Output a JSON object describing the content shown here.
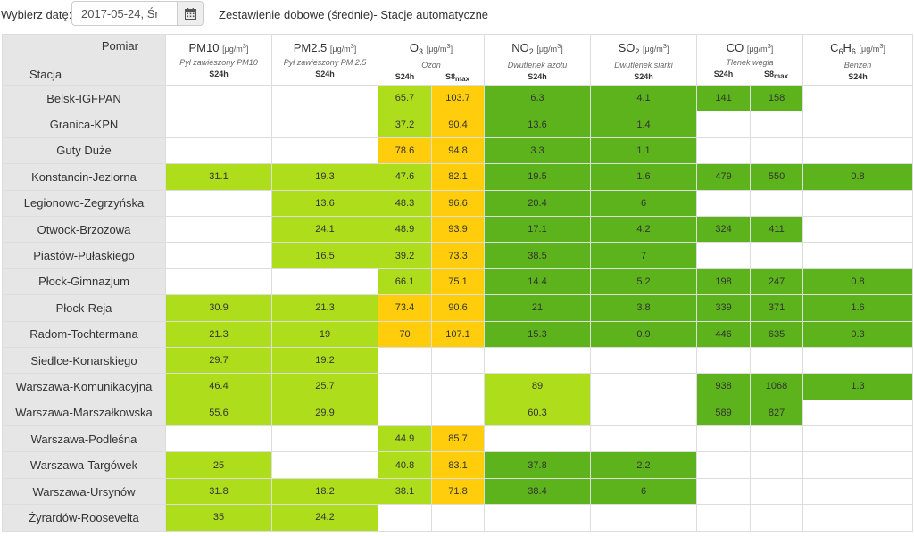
{
  "toolbar": {
    "date_label": "Wybierz datę:",
    "date_value": "2017-05-24, Śr",
    "calendar_icon": "calendar-icon",
    "title": "Zestawienie dobowe (średnie)- Stacje automatyczne"
  },
  "corner": {
    "pomiar": "Pomiar",
    "stacja": "Stacja"
  },
  "colors": {
    "lime": "#aedd1c",
    "green": "#5db31b",
    "yellow": "#ffcd0b",
    "header_gray": "#e6e6e6"
  },
  "columns": [
    {
      "main": "PM10",
      "sub": "",
      "after": "",
      "unit": "[μg/m",
      "unit_sup": "3",
      "desc": "Pył zawieszony PM10",
      "subs": [
        "S24h"
      ]
    },
    {
      "main": "PM2.5",
      "sub": "",
      "after": "",
      "unit": "[μg/m",
      "unit_sup": "3",
      "desc": "Pył zawieszony PM 2.5",
      "subs": [
        "S24h"
      ]
    },
    {
      "main": "O",
      "sub": "3",
      "after": "",
      "unit": "[μg/m",
      "unit_sup": "3",
      "desc": "Ozon",
      "subs": [
        "S24h",
        "S8max"
      ]
    },
    {
      "main": "NO",
      "sub": "2",
      "after": "",
      "unit": "[μg/m",
      "unit_sup": "3",
      "desc": "Dwutlenek azotu",
      "subs": [
        "S24h"
      ]
    },
    {
      "main": "SO",
      "sub": "2",
      "after": "",
      "unit": "[μg/m",
      "unit_sup": "3",
      "desc": "Dwutlenek siarki",
      "subs": [
        "S24h"
      ]
    },
    {
      "main": "CO",
      "sub": "",
      "after": "",
      "unit": "[μg/m",
      "unit_sup": "3",
      "desc": "Tlenek węgla",
      "subs": [
        "S24h",
        "S8max"
      ]
    },
    {
      "main": "C",
      "sub": "6",
      "after": "H",
      "sub2": "6",
      "unit": "[μg/m",
      "unit_sup": "3",
      "desc": "Benzen",
      "subs": [
        "S24h"
      ]
    }
  ],
  "rows": [
    {
      "station": "Belsk-IGFPAN",
      "cells": [
        [
          "",
          ""
        ],
        [
          "",
          ""
        ],
        [
          "65.7",
          "lime"
        ],
        [
          "103.7",
          "yellow"
        ],
        [
          "6.3",
          "green"
        ],
        [
          "4.1",
          "green"
        ],
        [
          "141",
          "green"
        ],
        [
          "158",
          "green"
        ],
        [
          "",
          ""
        ]
      ]
    },
    {
      "station": "Granica-KPN",
      "cells": [
        [
          "",
          ""
        ],
        [
          "",
          ""
        ],
        [
          "37.2",
          "lime"
        ],
        [
          "90.4",
          "yellow"
        ],
        [
          "13.6",
          "green"
        ],
        [
          "1.4",
          "green"
        ],
        [
          "",
          ""
        ],
        [
          "",
          ""
        ],
        [
          "",
          ""
        ]
      ]
    },
    {
      "station": "Guty Duże",
      "cells": [
        [
          "",
          ""
        ],
        [
          "",
          ""
        ],
        [
          "78.6",
          "yellow"
        ],
        [
          "94.8",
          "yellow"
        ],
        [
          "3.3",
          "green"
        ],
        [
          "1.1",
          "green"
        ],
        [
          "",
          ""
        ],
        [
          "",
          ""
        ],
        [
          "",
          ""
        ]
      ]
    },
    {
      "station": "Konstancin-Jeziorna",
      "cells": [
        [
          "31.1",
          "lime"
        ],
        [
          "19.3",
          "lime"
        ],
        [
          "47.6",
          "lime"
        ],
        [
          "82.1",
          "yellow"
        ],
        [
          "19.5",
          "green"
        ],
        [
          "1.6",
          "green"
        ],
        [
          "479",
          "green"
        ],
        [
          "550",
          "green"
        ],
        [
          "0.8",
          "green"
        ]
      ]
    },
    {
      "station": "Legionowo-Zegrzyńska",
      "cells": [
        [
          "",
          ""
        ],
        [
          "13.6",
          "lime"
        ],
        [
          "48.3",
          "lime"
        ],
        [
          "96.6",
          "yellow"
        ],
        [
          "20.4",
          "green"
        ],
        [
          "6",
          "green"
        ],
        [
          "",
          ""
        ],
        [
          "",
          ""
        ],
        [
          "",
          ""
        ]
      ]
    },
    {
      "station": "Otwock-Brzozowa",
      "cells": [
        [
          "",
          ""
        ],
        [
          "24.1",
          "lime"
        ],
        [
          "48.9",
          "lime"
        ],
        [
          "93.9",
          "yellow"
        ],
        [
          "17.1",
          "green"
        ],
        [
          "4.2",
          "green"
        ],
        [
          "324",
          "green"
        ],
        [
          "411",
          "green"
        ],
        [
          "",
          ""
        ]
      ]
    },
    {
      "station": "Piastów-Pułaskiego",
      "cells": [
        [
          "",
          ""
        ],
        [
          "16.5",
          "lime"
        ],
        [
          "39.2",
          "lime"
        ],
        [
          "73.3",
          "yellow"
        ],
        [
          "38.5",
          "green"
        ],
        [
          "7",
          "green"
        ],
        [
          "",
          ""
        ],
        [
          "",
          ""
        ],
        [
          "",
          ""
        ]
      ]
    },
    {
      "station": "Płock-Gimnazjum",
      "cells": [
        [
          "",
          ""
        ],
        [
          "",
          ""
        ],
        [
          "66.1",
          "lime"
        ],
        [
          "75.1",
          "yellow"
        ],
        [
          "14.4",
          "green"
        ],
        [
          "5.2",
          "green"
        ],
        [
          "198",
          "green"
        ],
        [
          "247",
          "green"
        ],
        [
          "0.8",
          "green"
        ]
      ]
    },
    {
      "station": "Płock-Reja",
      "cells": [
        [
          "30.9",
          "lime"
        ],
        [
          "21.3",
          "lime"
        ],
        [
          "73.4",
          "yellow"
        ],
        [
          "90.6",
          "yellow"
        ],
        [
          "21",
          "green"
        ],
        [
          "3.8",
          "green"
        ],
        [
          "339",
          "green"
        ],
        [
          "371",
          "green"
        ],
        [
          "1.6",
          "green"
        ]
      ]
    },
    {
      "station": "Radom-Tochtermana",
      "cells": [
        [
          "21.3",
          "lime"
        ],
        [
          "19",
          "lime"
        ],
        [
          "70",
          "yellow"
        ],
        [
          "107.1",
          "yellow"
        ],
        [
          "15.3",
          "green"
        ],
        [
          "0.9",
          "green"
        ],
        [
          "446",
          "green"
        ],
        [
          "635",
          "green"
        ],
        [
          "0.3",
          "green"
        ]
      ]
    },
    {
      "station": "Siedlce-Konarskiego",
      "cells": [
        [
          "29.7",
          "lime"
        ],
        [
          "19.2",
          "lime"
        ],
        [
          "",
          ""
        ],
        [
          "",
          ""
        ],
        [
          "",
          ""
        ],
        [
          "",
          ""
        ],
        [
          "",
          ""
        ],
        [
          "",
          ""
        ],
        [
          "",
          ""
        ]
      ]
    },
    {
      "station": "Warszawa-Komunikacyjna",
      "cells": [
        [
          "46.4",
          "lime"
        ],
        [
          "25.7",
          "lime"
        ],
        [
          "",
          ""
        ],
        [
          "",
          ""
        ],
        [
          "89",
          "lime"
        ],
        [
          "",
          ""
        ],
        [
          "938",
          "green"
        ],
        [
          "1068",
          "green"
        ],
        [
          "1.3",
          "green"
        ]
      ]
    },
    {
      "station": "Warszawa-Marszałkowska",
      "cells": [
        [
          "55.6",
          "lime"
        ],
        [
          "29.9",
          "lime"
        ],
        [
          "",
          ""
        ],
        [
          "",
          ""
        ],
        [
          "60.3",
          "lime"
        ],
        [
          "",
          ""
        ],
        [
          "589",
          "green"
        ],
        [
          "827",
          "green"
        ],
        [
          "",
          ""
        ]
      ]
    },
    {
      "station": "Warszawa-Podleśna",
      "cells": [
        [
          "",
          ""
        ],
        [
          "",
          ""
        ],
        [
          "44.9",
          "lime"
        ],
        [
          "85.7",
          "yellow"
        ],
        [
          "",
          ""
        ],
        [
          "",
          ""
        ],
        [
          "",
          ""
        ],
        [
          "",
          ""
        ],
        [
          "",
          ""
        ]
      ]
    },
    {
      "station": "Warszawa-Targówek",
      "cells": [
        [
          "25",
          "lime"
        ],
        [
          "",
          ""
        ],
        [
          "40.8",
          "lime"
        ],
        [
          "83.1",
          "yellow"
        ],
        [
          "37.8",
          "green"
        ],
        [
          "2.2",
          "green"
        ],
        [
          "",
          ""
        ],
        [
          "",
          ""
        ],
        [
          "",
          ""
        ]
      ]
    },
    {
      "station": "Warszawa-Ursynów",
      "cells": [
        [
          "31.8",
          "lime"
        ],
        [
          "18.2",
          "lime"
        ],
        [
          "38.1",
          "lime"
        ],
        [
          "71.8",
          "yellow"
        ],
        [
          "38.4",
          "green"
        ],
        [
          "6",
          "green"
        ],
        [
          "",
          ""
        ],
        [
          "",
          ""
        ],
        [
          "",
          ""
        ]
      ]
    },
    {
      "station": "Żyrardów-Roosevelta",
      "cells": [
        [
          "35",
          "lime"
        ],
        [
          "24.2",
          "lime"
        ],
        [
          "",
          ""
        ],
        [
          "",
          ""
        ],
        [
          "",
          ""
        ],
        [
          "",
          ""
        ],
        [
          "",
          ""
        ],
        [
          "",
          ""
        ],
        [
          "",
          ""
        ]
      ]
    }
  ]
}
